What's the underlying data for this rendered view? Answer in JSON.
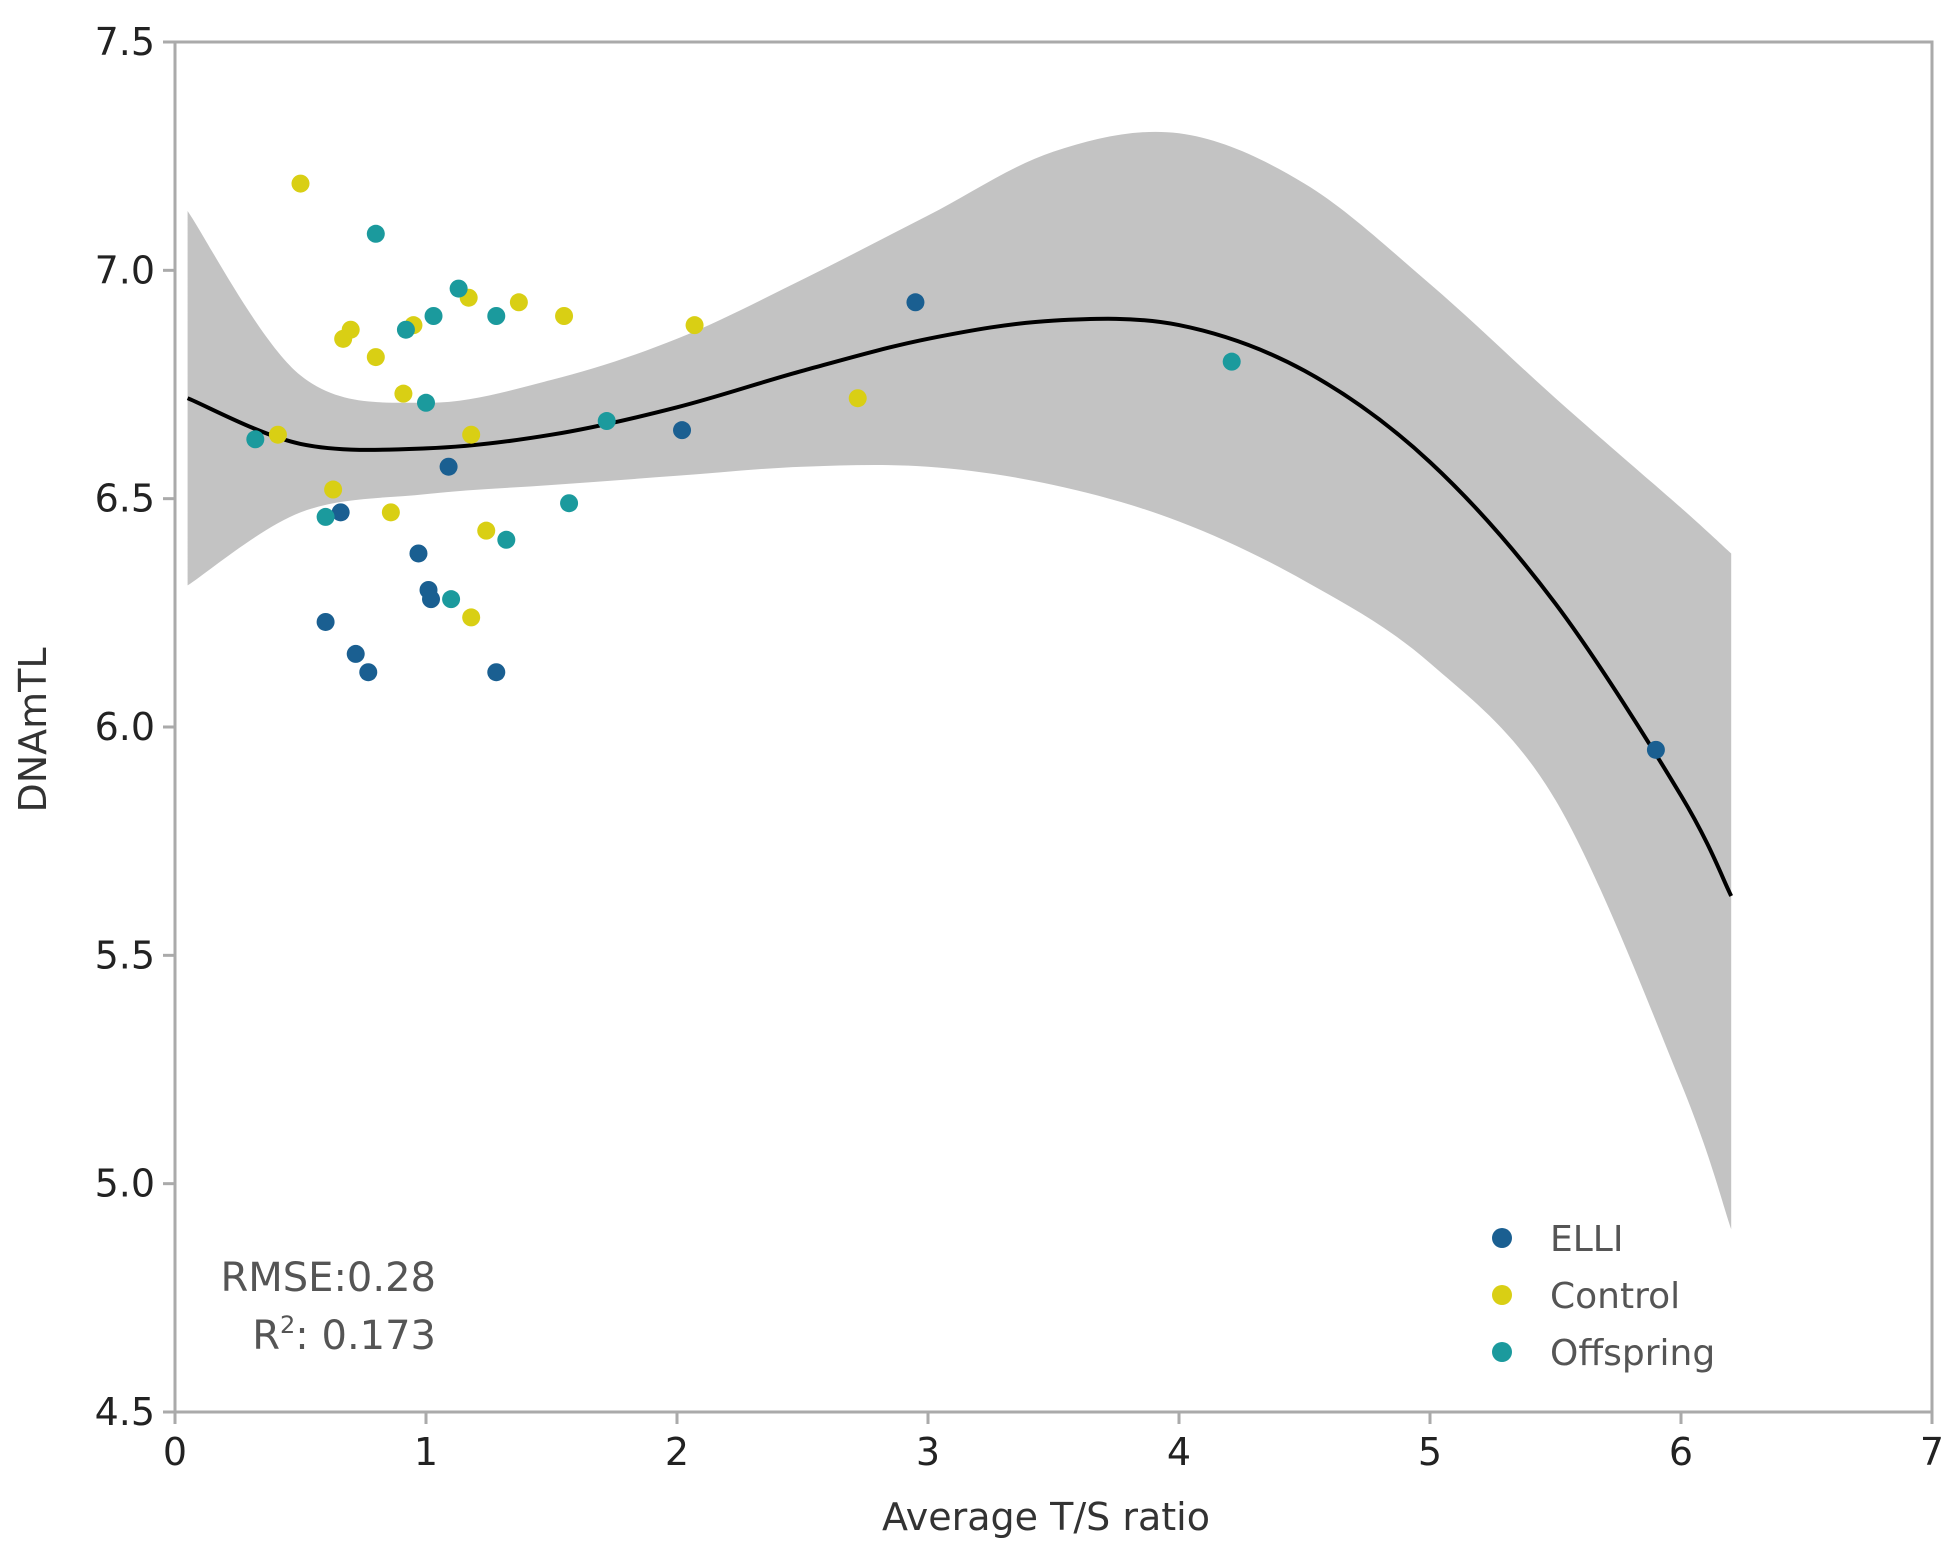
{
  "chart_data": {
    "type": "scatter",
    "xlabel": "Average T/S ratio",
    "ylabel": "DNAmTL",
    "xlim": [
      0,
      7
    ],
    "ylim": [
      4.5,
      7.5
    ],
    "x_ticks": [
      "0",
      "1",
      "2",
      "3",
      "4",
      "5",
      "6",
      "7"
    ],
    "y_ticks": [
      "4.5",
      "5.0",
      "5.5",
      "6.0",
      "6.5",
      "7.0",
      "7.5"
    ],
    "grid": false,
    "legend_position": "bottom-right",
    "colors": {
      "ELLI": "#1a5f91",
      "Control": "#d9cf14",
      "Offspring": "#1b9a9d",
      "fit_line": "#000000",
      "confidence_band": "#c3c3c3",
      "frame": "#aaaaaa"
    },
    "series": [
      {
        "name": "ELLI",
        "points": [
          [
            0.66,
            6.47
          ],
          [
            0.6,
            6.23
          ],
          [
            0.72,
            6.16
          ],
          [
            0.77,
            6.12
          ],
          [
            0.97,
            6.38
          ],
          [
            1.01,
            6.3
          ],
          [
            1.02,
            6.28
          ],
          [
            1.09,
            6.57
          ],
          [
            1.28,
            6.12
          ],
          [
            2.02,
            6.65
          ],
          [
            2.95,
            6.93
          ],
          [
            5.9,
            5.95
          ]
        ]
      },
      {
        "name": "Control",
        "points": [
          [
            0.41,
            6.64
          ],
          [
            0.5,
            7.19
          ],
          [
            0.63,
            6.52
          ],
          [
            0.67,
            6.85
          ],
          [
            0.7,
            6.87
          ],
          [
            0.8,
            6.81
          ],
          [
            0.86,
            6.47
          ],
          [
            0.91,
            6.73
          ],
          [
            0.95,
            6.88
          ],
          [
            1.17,
            6.94
          ],
          [
            1.18,
            6.64
          ],
          [
            1.18,
            6.24
          ],
          [
            1.24,
            6.43
          ],
          [
            1.37,
            6.93
          ],
          [
            1.55,
            6.9
          ],
          [
            2.07,
            6.88
          ],
          [
            2.72,
            6.72
          ]
        ]
      },
      {
        "name": "Offspring",
        "points": [
          [
            0.32,
            6.63
          ],
          [
            0.6,
            6.46
          ],
          [
            0.8,
            7.08
          ],
          [
            0.92,
            6.87
          ],
          [
            1.0,
            6.71
          ],
          [
            1.03,
            6.9
          ],
          [
            1.1,
            6.28
          ],
          [
            1.13,
            6.96
          ],
          [
            1.28,
            6.9
          ],
          [
            1.32,
            6.41
          ],
          [
            1.57,
            6.49
          ],
          [
            1.72,
            6.67
          ],
          [
            4.21,
            6.8
          ]
        ]
      }
    ],
    "fit_curve": {
      "x": [
        0.05,
        0.5,
        1.0,
        1.5,
        2.0,
        2.5,
        3.0,
        3.5,
        4.0,
        4.5,
        5.0,
        5.5,
        6.0,
        6.2
      ],
      "y": [
        6.72,
        6.62,
        6.61,
        6.64,
        6.7,
        6.78,
        6.85,
        6.89,
        6.88,
        6.78,
        6.58,
        6.27,
        5.85,
        5.63
      ],
      "band_lower": [
        6.31,
        6.47,
        6.51,
        6.53,
        6.55,
        6.57,
        6.57,
        6.53,
        6.45,
        6.32,
        6.14,
        5.84,
        5.22,
        4.9
      ],
      "band_upper": [
        7.13,
        6.77,
        6.71,
        6.76,
        6.85,
        6.98,
        7.12,
        7.26,
        7.3,
        7.19,
        6.97,
        6.72,
        6.48,
        6.38
      ]
    },
    "annotations": {
      "rmse": "RMSE:0.28",
      "r2_prefix": "R",
      "r2_sup": "2",
      "r2_value": ": 0.173"
    }
  }
}
